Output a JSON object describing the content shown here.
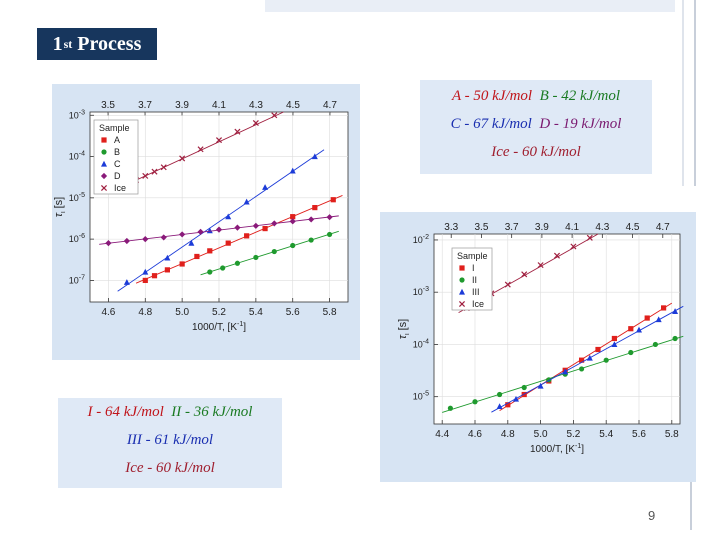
{
  "slide": {
    "title_prefix": "1",
    "title_sup": "st",
    "title_suffix": "Process",
    "page_number": "9"
  },
  "energies_top": {
    "a": "A - 50 kJ/mol",
    "b": "B - 42 kJ/mol",
    "c": "C - 67 kJ/mol",
    "d": "D - 19 kJ/mol",
    "ice": "Ice - 60 kJ/mol"
  },
  "energies_bottom": {
    "i": "I - 64 kJ/mol",
    "ii": "II - 36 kJ/mol",
    "iii": "III - 61 kJ/mol",
    "ice": "Ice - 60 kJ/mol"
  },
  "colors": {
    "red": "#e0201c",
    "green": "#1f9a2e",
    "blue": "#1c3bd8",
    "purple": "#8a1a7a",
    "ice": "#a02040"
  },
  "chart_data": [
    {
      "type": "scatter",
      "xlabel": "1000/T, [K",
      "xlabel_sup": "-1",
      "xlabel_end": "]",
      "ylabel": "τ",
      "ylabel_sub": "ι",
      "ylabel_unit": "[s]",
      "x_scale": "linear",
      "y_scale": "log",
      "xlim": [
        4.5,
        5.9
      ],
      "ylim": [
        3e-08,
        0.0012
      ],
      "x_ticks": [
        "4.6",
        "4.8",
        "5.0",
        "5.2",
        "5.4",
        "5.6",
        "5.8"
      ],
      "top_ticks": [
        "3.5",
        "3.7",
        "3.9",
        "4.1",
        "4.3",
        "4.5",
        "4.7"
      ],
      "y_ticks": [
        {
          "label": "10",
          "exp": "-3",
          "value": 0.001
        },
        {
          "label": "10",
          "exp": "-4",
          "value": 0.0001
        },
        {
          "label": "10",
          "exp": "-5",
          "value": 1e-05
        },
        {
          "label": "10",
          "exp": "-6",
          "value": 1e-06
        },
        {
          "label": "10",
          "exp": "-7",
          "value": 1e-07
        }
      ],
      "legend_title": "Sample",
      "legend_position": "top-left",
      "series": [
        {
          "name": "A",
          "marker": "square",
          "color": "#e0201c",
          "x": [
            4.8,
            4.85,
            4.92,
            5.0,
            5.08,
            5.15,
            5.25,
            5.35,
            5.45,
            5.6,
            5.72,
            5.82
          ],
          "y": [
            1e-07,
            1.3e-07,
            1.8e-07,
            2.5e-07,
            3.8e-07,
            5.2e-07,
            8e-07,
            1.2e-06,
            1.8e-06,
            3.5e-06,
            5.8e-06,
            9e-06
          ]
        },
        {
          "name": "B",
          "marker": "circle",
          "color": "#1f9a2e",
          "x": [
            5.15,
            5.22,
            5.3,
            5.4,
            5.5,
            5.6,
            5.7,
            5.8
          ],
          "y": [
            1.6e-07,
            2e-07,
            2.6e-07,
            3.6e-07,
            5e-07,
            7e-07,
            9.5e-07,
            1.3e-06
          ]
        },
        {
          "name": "C",
          "marker": "triangle",
          "color": "#1c3bd8",
          "x": [
            4.7,
            4.8,
            4.92,
            5.05,
            5.15,
            5.25,
            5.35,
            5.45,
            5.6,
            5.72
          ],
          "y": [
            9e-08,
            1.6e-07,
            3.5e-07,
            8e-07,
            1.6e-06,
            3.5e-06,
            8e-06,
            1.8e-05,
            4.5e-05,
            0.0001
          ]
        },
        {
          "name": "D",
          "marker": "diamond",
          "color": "#8a1a7a",
          "x": [
            4.6,
            4.7,
            4.8,
            4.9,
            5.0,
            5.1,
            5.2,
            5.3,
            5.4,
            5.5,
            5.6,
            5.7,
            5.8
          ],
          "y": [
            8e-07,
            9e-07,
            1e-06,
            1.1e-06,
            1.3e-06,
            1.5e-06,
            1.7e-06,
            1.9e-06,
            2.1e-06,
            2.4e-06,
            2.7e-06,
            3e-06,
            3.4e-06
          ]
        },
        {
          "name": "Ice",
          "marker": "x",
          "color": "#a02040",
          "x": [
            4.7,
            4.75,
            4.8,
            4.85,
            4.9,
            5.0,
            5.1,
            5.2,
            5.3,
            5.4,
            5.5
          ],
          "y": [
            2.2e-05,
            2.7e-05,
            3.4e-05,
            4.3e-05,
            5.5e-05,
            9e-05,
            0.00015,
            0.00025,
            0.0004,
            0.00065,
            0.001
          ]
        }
      ]
    },
    {
      "type": "scatter",
      "xlabel": "1000/T, [K",
      "xlabel_sup": "-1",
      "xlabel_end": "]",
      "ylabel": "τ",
      "ylabel_sub": "ι",
      "ylabel_unit": "[s]",
      "x_scale": "linear",
      "y_scale": "log",
      "xlim": [
        4.35,
        5.85
      ],
      "ylim": [
        3e-06,
        0.013
      ],
      "x_ticks": [
        "4.4",
        "4.6",
        "4.8",
        "5.0",
        "5.2",
        "5.4",
        "5.6",
        "5.8"
      ],
      "top_ticks": [
        "3.3",
        "3.5",
        "3.7",
        "3.9",
        "4.1",
        "4.3",
        "4.5",
        "4.7"
      ],
      "y_ticks": [
        {
          "label": "10",
          "exp": "-2",
          "value": 0.01
        },
        {
          "label": "10",
          "exp": "-3",
          "value": 0.001
        },
        {
          "label": "10",
          "exp": "-4",
          "value": 0.0001
        },
        {
          "label": "10",
          "exp": "-5",
          "value": 1e-05
        }
      ],
      "legend_title": "Sample",
      "legend_position": "top-left",
      "series": [
        {
          "name": "I",
          "marker": "square",
          "color": "#e0201c",
          "x": [
            4.8,
            4.9,
            5.05,
            5.15,
            5.25,
            5.35,
            5.45,
            5.55,
            5.65,
            5.75
          ],
          "y": [
            7e-06,
            1.1e-05,
            2e-05,
            3.2e-05,
            5e-05,
            8e-05,
            0.00013,
            0.0002,
            0.00032,
            0.0005
          ]
        },
        {
          "name": "II",
          "marker": "circle",
          "color": "#1f9a2e",
          "x": [
            4.45,
            4.6,
            4.75,
            4.9,
            5.05,
            5.15,
            5.25,
            5.4,
            5.55,
            5.7,
            5.82
          ],
          "y": [
            6e-06,
            8e-06,
            1.1e-05,
            1.5e-05,
            2.1e-05,
            2.7e-05,
            3.4e-05,
            5e-05,
            7e-05,
            0.0001,
            0.00013
          ]
        },
        {
          "name": "III",
          "marker": "triangle",
          "color": "#1c3bd8",
          "x": [
            4.75,
            4.85,
            5.0,
            5.15,
            5.3,
            5.45,
            5.6,
            5.72,
            5.82
          ],
          "y": [
            6.5e-06,
            9e-06,
            1.6e-05,
            3e-05,
            5.5e-05,
            0.0001,
            0.00019,
            0.0003,
            0.00043
          ]
        },
        {
          "name": "Ice",
          "marker": "x",
          "color": "#a02040",
          "x": [
            4.55,
            4.6,
            4.65,
            4.7,
            4.8,
            4.9,
            5.0,
            5.1,
            5.2,
            5.3
          ],
          "y": [
            0.0005,
            0.0006,
            0.00075,
            0.00095,
            0.0014,
            0.0022,
            0.0033,
            0.005,
            0.0075,
            0.011
          ]
        }
      ]
    }
  ]
}
